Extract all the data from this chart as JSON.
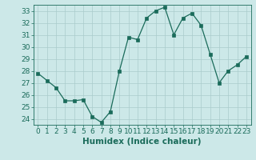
{
  "x": [
    0,
    1,
    2,
    3,
    4,
    5,
    6,
    7,
    8,
    9,
    10,
    11,
    12,
    13,
    14,
    15,
    16,
    17,
    18,
    19,
    20,
    21,
    22,
    23
  ],
  "y": [
    27.8,
    27.2,
    26.6,
    25.5,
    25.5,
    25.6,
    24.2,
    23.7,
    24.6,
    28.0,
    30.8,
    30.6,
    32.4,
    33.0,
    33.3,
    31.0,
    32.4,
    32.8,
    31.8,
    29.4,
    27.0,
    28.0,
    28.5,
    29.2
  ],
  "line_color": "#1a6b5a",
  "marker": "s",
  "marker_size": 2.5,
  "bg_color": "#cce8e8",
  "grid_color": "#aacccc",
  "xlabel": "Humidex (Indice chaleur)",
  "ylim": [
    23.5,
    33.5
  ],
  "yticks": [
    24,
    25,
    26,
    27,
    28,
    29,
    30,
    31,
    32,
    33
  ],
  "xlim": [
    -0.5,
    23.5
  ],
  "xticks": [
    0,
    1,
    2,
    3,
    4,
    5,
    6,
    7,
    8,
    9,
    10,
    11,
    12,
    13,
    14,
    15,
    16,
    17,
    18,
    19,
    20,
    21,
    22,
    23
  ],
  "tick_color": "#1a6b5a",
  "label_color": "#1a6b5a",
  "label_fontsize": 7.5,
  "tick_fontsize": 6.5
}
